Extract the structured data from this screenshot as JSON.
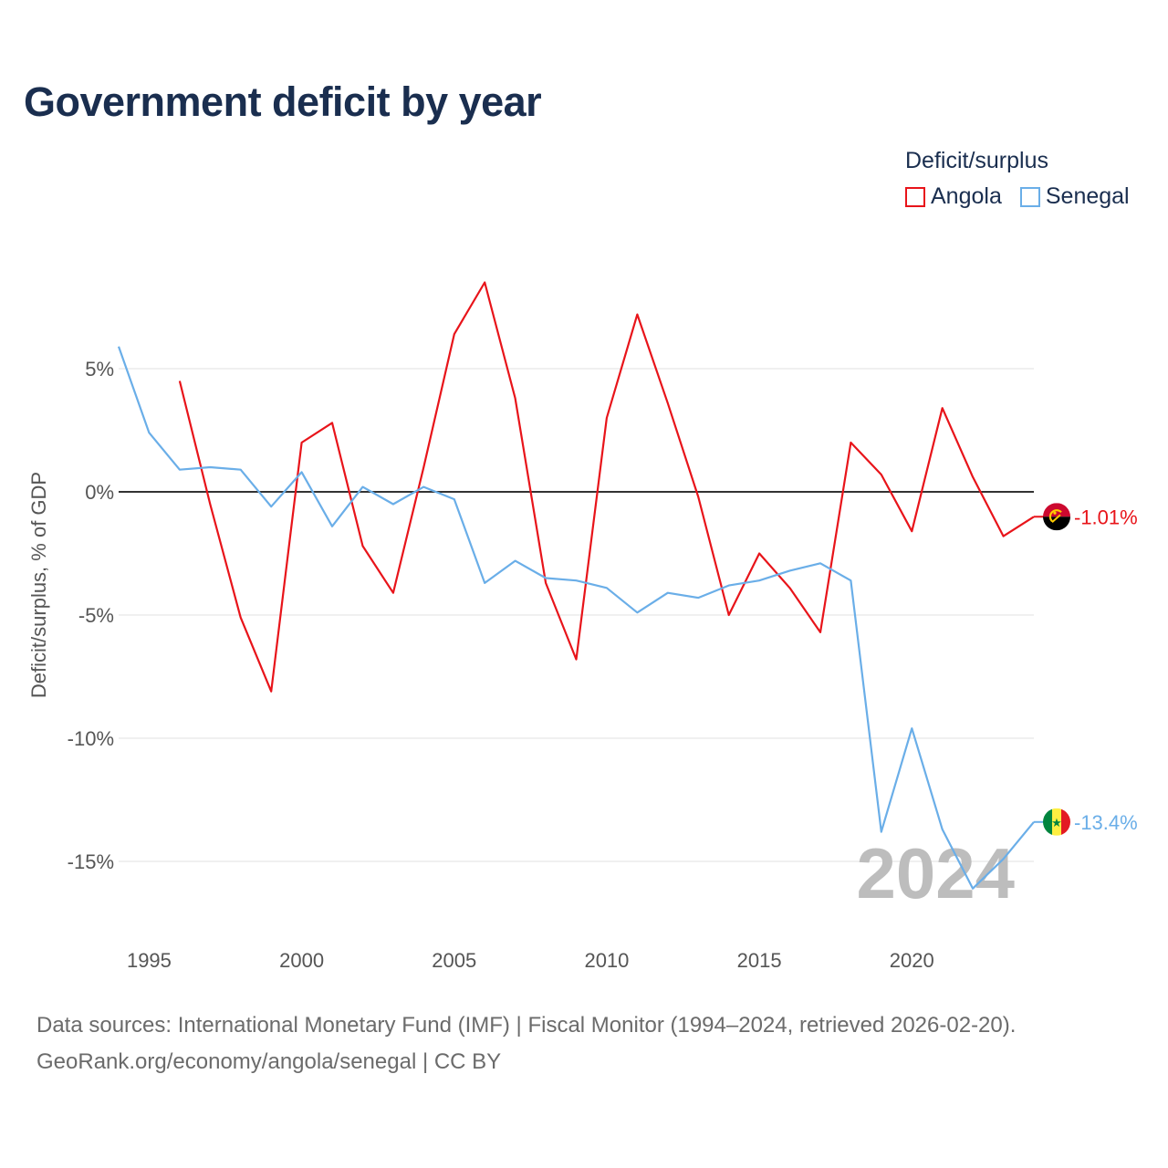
{
  "header": {
    "title": "Government deficit by year"
  },
  "legend": {
    "title": "Deficit/surplus",
    "items": [
      {
        "label": "Angola",
        "color": "#e8141a"
      },
      {
        "label": "Senegal",
        "color": "#6aaee8"
      }
    ]
  },
  "chart_data": {
    "type": "line",
    "title": "Government deficit by year",
    "xlabel": "",
    "ylabel": "Deficit/surplus, % of GDP",
    "xlim": [
      1994,
      2024
    ],
    "ylim": [
      -18,
      10
    ],
    "xticks": [
      1995,
      2000,
      2005,
      2010,
      2015,
      2020
    ],
    "xtick_labels": [
      "1995",
      "2000",
      "2005",
      "2010",
      "2015",
      "2020"
    ],
    "yticks": [
      5,
      0,
      -5,
      -10,
      -15
    ],
    "ytick_labels": [
      "5%",
      "0%",
      "-5%",
      "-10%",
      "-15%"
    ],
    "zero_line": true,
    "grid": true,
    "year_annotation": "2024",
    "series": [
      {
        "name": "Angola",
        "color": "#e8141a",
        "end_label": "-1.01%",
        "flag": "angola-flag",
        "x": [
          1996,
          1997,
          1998,
          1999,
          2000,
          2001,
          2002,
          2003,
          2004,
          2005,
          2006,
          2007,
          2008,
          2009,
          2010,
          2011,
          2012,
          2013,
          2014,
          2015,
          2016,
          2017,
          2018,
          2019,
          2020,
          2021,
          2022,
          2023,
          2024
        ],
        "values": [
          4.5,
          -0.5,
          -5.1,
          -8.1,
          2.0,
          2.8,
          -2.2,
          -4.1,
          1.0,
          6.4,
          8.5,
          3.8,
          -3.7,
          -6.8,
          3.0,
          7.2,
          3.6,
          -0.2,
          -5.0,
          -2.5,
          -3.9,
          -5.7,
          2.0,
          0.7,
          -1.6,
          3.4,
          0.6,
          -1.8,
          -1.01
        ]
      },
      {
        "name": "Senegal",
        "color": "#6aaee8",
        "end_label": "-13.4%",
        "flag": "senegal-flag",
        "x": [
          1994,
          1995,
          1996,
          1997,
          1998,
          1999,
          2000,
          2001,
          2002,
          2003,
          2004,
          2005,
          2006,
          2007,
          2008,
          2009,
          2010,
          2011,
          2012,
          2013,
          2014,
          2015,
          2016,
          2017,
          2018,
          2019,
          2020,
          2021,
          2022,
          2023,
          2024
        ],
        "values": [
          5.9,
          2.4,
          0.9,
          1.0,
          0.9,
          -0.6,
          0.8,
          -1.4,
          0.2,
          -0.5,
          0.2,
          -0.3,
          -3.7,
          -2.8,
          -3.5,
          -3.6,
          -3.9,
          -4.9,
          -4.1,
          -4.3,
          -3.8,
          -3.6,
          -3.2,
          -2.9,
          -3.6,
          -13.8,
          -9.6,
          -13.7,
          -16.1,
          -14.9,
          -13.4
        ]
      }
    ]
  },
  "footer": {
    "line1": "Data sources: International Monetary Fund (IMF) | Fiscal Monitor (1994–2024, retrieved 2026-02-20).",
    "line2": "GeoRank.org/economy/angola/senegal | CC BY"
  }
}
